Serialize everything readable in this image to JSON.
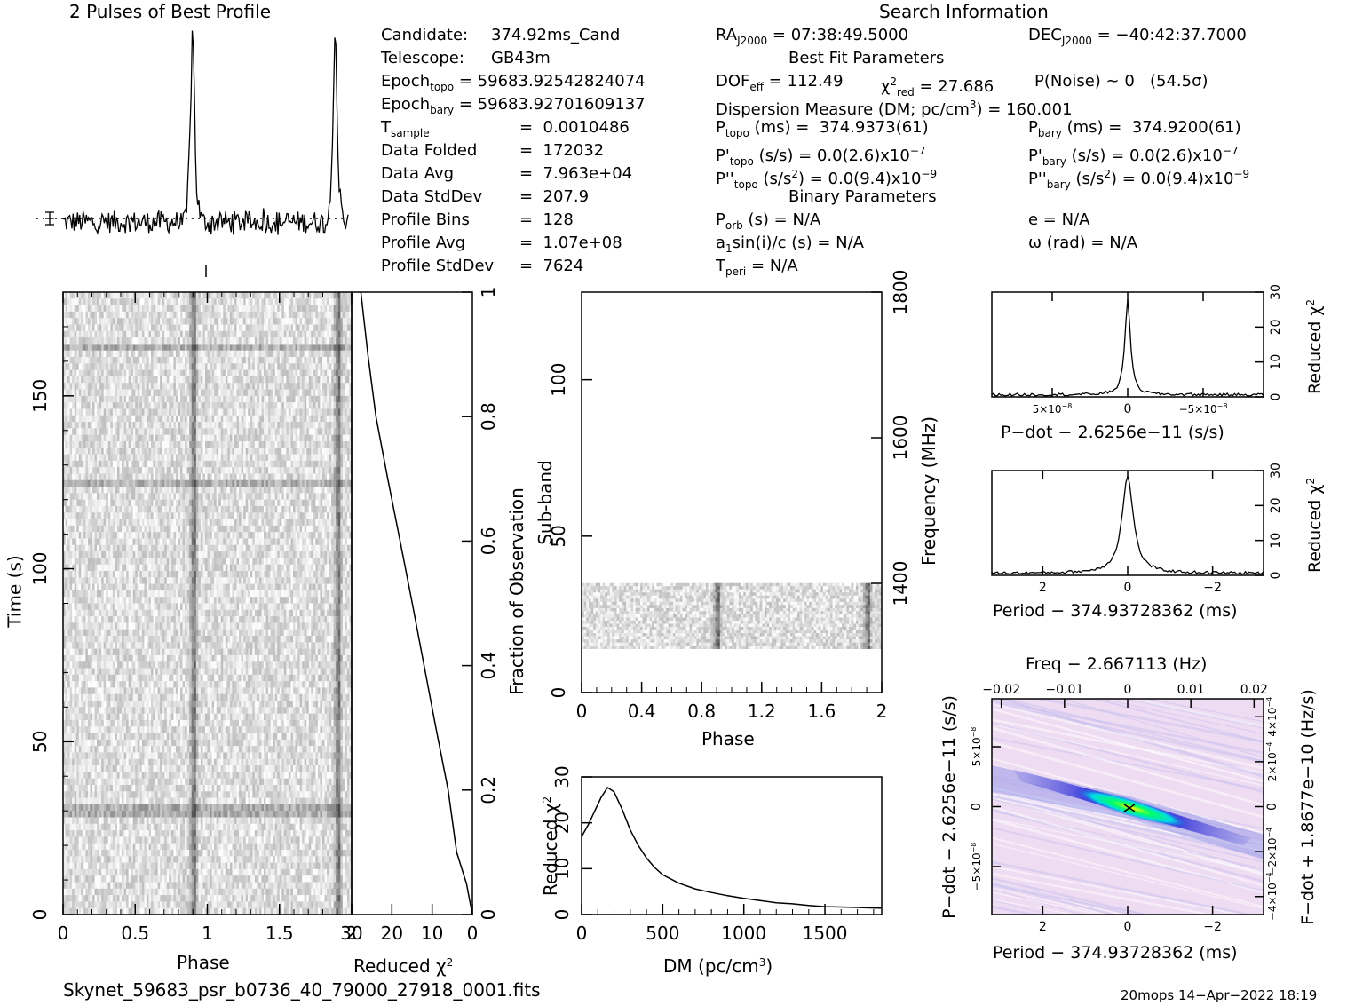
{
  "header": {
    "profile_title": "2 Pulses of Best Profile",
    "search_title": "Search Information",
    "best_fit_title": "Best Fit Parameters",
    "binary_title": "Binary Parameters"
  },
  "info": {
    "candidate_label": "Candidate:",
    "candidate_value": "374.92ms_Cand",
    "telescope_label": "Telescope:",
    "telescope_value": "GB43m",
    "epoch_topo_label": "Epoch",
    "epoch_topo_sub": "topo",
    "epoch_topo_value": "= 59683.92542824074",
    "epoch_bary_label": "Epoch",
    "epoch_bary_sub": "bary",
    "epoch_bary_value": "= 59683.92701609137",
    "tsample_label": "T",
    "tsample_sub": "sample",
    "tsample_value": "=  0.0010486",
    "data_folded_label": "Data Folded",
    "data_folded_value": "=  172032",
    "data_avg_label": "Data Avg",
    "data_avg_value": "=  7.963e+04",
    "data_std_label": "Data StdDev",
    "data_std_value": "=  207.9",
    "profile_bins_label": "Profile Bins",
    "profile_bins_value": "=  128",
    "profile_avg_label": "Profile Avg",
    "profile_avg_value": "=  1.07e+08",
    "profile_std_label": "Profile StdDev",
    "profile_std_value": "=  7624"
  },
  "search": {
    "ra_label": "RA",
    "ra_sub": "J2000",
    "ra_value": "= 07:38:49.5000",
    "dec_label": "DEC",
    "dec_sub": "J2000",
    "dec_value": "= −40:42:37.7000",
    "dof_label": "DOF",
    "dof_sub": "eff",
    "dof_value": "= 112.49",
    "chi_label": "χ",
    "chi_sup": "2",
    "chi_sub": "red",
    "chi_value": "= 27.686",
    "pnoise": "P(Noise) ~ 0   (54.5σ)",
    "dm_text": "Dispersion Measure (DM; pc/cm",
    "dm_sup": "3",
    "dm_value": ") = 160.001",
    "ptopo_label": "P",
    "ptopo_sub": "topo",
    "ptopo_value": "(ms) =  374.9373(61)",
    "pbary_label": "P",
    "pbary_sub": "bary",
    "pbary_value": "(ms) =  374.9200(61)",
    "pdtopo_label": "P'",
    "pdtopo_sub": "topo",
    "pdtopo_value": "(s/s) = 0.0(2.6)x10",
    "pdtopo_exp": "−7",
    "pdbary_label": "P'",
    "pdbary_sub": "bary",
    "pdbary_value": "(s/s) = 0.0(2.6)x10",
    "pdbary_exp": "−7",
    "pddtopo_label": "P''",
    "pddtopo_sub": "topo",
    "pddtopo_value": "(s/s",
    "pddtopo_sup": "2",
    "pddtopo_value2": ") = 0.0(9.4)x10",
    "pddtopo_exp": "−9",
    "pddbary_label": "P''",
    "pddbary_sub": "bary",
    "pddbary_value": "(s/s",
    "pddbary_sup": "2",
    "pddbary_value2": ") = 0.0(9.4)x10",
    "pddbary_exp": "−9",
    "porb_label": "P",
    "porb_sub": "orb",
    "porb_value": "(s) = N/A",
    "ecc_text": "e = N/A",
    "a1_label": "a",
    "a1_sub": "1",
    "a1_value": "sin(i)/c (s) = N/A",
    "omega_text": "ω (rad) = N/A",
    "tperi_label": "T",
    "tperi_sub": "peri",
    "tperi_value": "= N/A"
  },
  "footer": {
    "filename": "Skynet_59683_psr_b0736_40_79000_27918_0001.fits",
    "stamp": "20mops 14−Apr−2022 18:19"
  },
  "colors": {
    "background": "#ffffff",
    "ink": "#000000",
    "ppdot_base": "#eedcf2",
    "ppdot_band": "#3b3bd6",
    "ppdot_core": "#00e6e6",
    "ppdot_peak": "#ffff00"
  },
  "chart_data": [
    {
      "type": "line",
      "id": "profile",
      "title": "2 Pulses of Best Profile",
      "x": [
        0,
        2
      ],
      "peaks_phase": [
        0.91,
        1.91
      ],
      "peak_height_norm": 1.0,
      "baseline_norm": 0.0
    },
    {
      "type": "heatmap",
      "id": "time-phase",
      "xlabel": "Phase",
      "ylabel": "Time (s)",
      "xlim": [
        0,
        2
      ],
      "ylim": [
        0,
        180
      ],
      "xticks": [
        "0",
        "0.5",
        "1",
        "1.5",
        "2"
      ],
      "yticks": [
        "0",
        "50",
        "100",
        "150"
      ],
      "pulse_phase": [
        0.91,
        1.91
      ]
    },
    {
      "type": "line",
      "id": "time-chi2",
      "xlabel": "Reduced χ",
      "xlabel_sup": "2",
      "ylabel": "Fraction of Observation",
      "xlim": [
        30,
        0
      ],
      "ylim": [
        0,
        1
      ],
      "xticks": [
        "30",
        "20",
        "10",
        "0"
      ],
      "yticks": [
        "0",
        "0.2",
        "0.4",
        "0.6",
        "0.8",
        "1"
      ],
      "points": [
        [
          0,
          0
        ],
        [
          1.5,
          0.05
        ],
        [
          4,
          0.1
        ],
        [
          6,
          0.2
        ],
        [
          9,
          0.3
        ],
        [
          12,
          0.4
        ],
        [
          15,
          0.5
        ],
        [
          18,
          0.6
        ],
        [
          21,
          0.7
        ],
        [
          24,
          0.8
        ],
        [
          26,
          0.9
        ],
        [
          27.7,
          1.0
        ]
      ]
    },
    {
      "type": "heatmap",
      "id": "subband-phase",
      "xlabel": "Phase",
      "ylabel": "Sub-band",
      "y2label": "Frequency (MHz)",
      "xlim": [
        0,
        2
      ],
      "ylim": [
        0,
        128
      ],
      "xticks": [
        "0",
        "0.4",
        "0.8",
        "1.2",
        "1.6",
        "2"
      ],
      "yticks": [
        "0",
        "50",
        "100"
      ],
      "y2ticks": [
        "1400",
        "1600",
        "1800"
      ],
      "y2lim": [
        1250,
        1800
      ],
      "data_band": [
        14,
        35
      ],
      "pulse_phase": [
        0.91,
        1.91
      ]
    },
    {
      "type": "line",
      "id": "dm-chi2",
      "xlabel": "DM (pc/cm",
      "xlabel_sup": "3",
      "xlabel_end": ")",
      "ylabel": "Reduced χ",
      "ylabel_sup": "2",
      "xlim": [
        0,
        1850
      ],
      "ylim": [
        0,
        30
      ],
      "xticks": [
        "0",
        "500",
        "1000",
        "1500"
      ],
      "yticks": [
        "0",
        "10",
        "20",
        "30"
      ],
      "points": [
        [
          0,
          17
        ],
        [
          40,
          19.5
        ],
        [
          80,
          22.5
        ],
        [
          120,
          25.5
        ],
        [
          160,
          27.7
        ],
        [
          200,
          26.8
        ],
        [
          250,
          23
        ],
        [
          300,
          18.5
        ],
        [
          350,
          15
        ],
        [
          400,
          12.3
        ],
        [
          450,
          10.2
        ],
        [
          500,
          8.7
        ],
        [
          600,
          6.8
        ],
        [
          700,
          5.6
        ],
        [
          800,
          4.8
        ],
        [
          900,
          4.1
        ],
        [
          1000,
          3.5
        ],
        [
          1100,
          3.0
        ],
        [
          1200,
          2.6
        ],
        [
          1300,
          2.3
        ],
        [
          1400,
          2.0
        ],
        [
          1500,
          1.8
        ],
        [
          1600,
          1.6
        ],
        [
          1700,
          1.5
        ],
        [
          1800,
          1.4
        ],
        [
          1850,
          1.4
        ]
      ]
    },
    {
      "type": "line",
      "id": "pdot-chi2",
      "xlabel": "P−dot − 2.6256e−11 (s/s)",
      "ylabel": "Reduced χ",
      "ylabel_sup": "2",
      "xlim": [
        9e-08,
        -9e-08
      ],
      "ylim": [
        0,
        30
      ],
      "xticks": [
        "5×10",
        "0",
        "−5×10"
      ],
      "xtick_exp": "−8",
      "yticks": [
        "0",
        "10",
        "20",
        "30"
      ],
      "peak": 27.7
    },
    {
      "type": "line",
      "id": "period-chi2",
      "xlabel": "Period − 374.93728362 (ms)",
      "ylabel": "Reduced χ",
      "ylabel_sup": "2",
      "xlim": [
        3.2,
        -3.2
      ],
      "ylim": [
        0,
        30
      ],
      "xticks": [
        "2",
        "0",
        "−2"
      ],
      "yticks": [
        "0",
        "10",
        "20",
        "30"
      ],
      "peak": 27.7
    },
    {
      "type": "heatmap",
      "id": "p-pdot",
      "title": "Freq − 2.667113 (Hz)",
      "xlabel": "Period − 374.93728362 (ms)",
      "ylabel": "P−dot − 2.6256e−11 (s/s)",
      "y2label": "F−dot + 1.8677e−10 (Hz/s)",
      "xlim": [
        3.2,
        -3.2
      ],
      "ylim": [
        9e-08,
        -9e-08
      ],
      "xticks": [
        "2",
        "0",
        "−2"
      ],
      "x2ticks": [
        "−0.02",
        "−0.01",
        "0",
        "0.01",
        "0.02"
      ],
      "yticks": [
        "5×10",
        "0",
        "−5×10"
      ],
      "ytick_exp": "−8",
      "y2ticks": [
        "−4×10",
        "−2×10",
        "0",
        "2×10",
        "4×10"
      ],
      "y2tick_exp": "−4"
    }
  ]
}
